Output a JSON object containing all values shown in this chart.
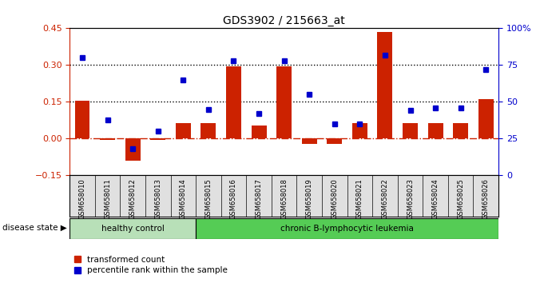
{
  "title": "GDS3902 / 215663_at",
  "samples": [
    "GSM658010",
    "GSM658011",
    "GSM658012",
    "GSM658013",
    "GSM658014",
    "GSM658015",
    "GSM658016",
    "GSM658017",
    "GSM658018",
    "GSM658019",
    "GSM658020",
    "GSM658021",
    "GSM658022",
    "GSM658023",
    "GSM658024",
    "GSM658025",
    "GSM658026"
  ],
  "bar_values": [
    0.155,
    -0.005,
    -0.09,
    -0.005,
    0.065,
    0.065,
    0.295,
    0.055,
    0.295,
    -0.02,
    -0.02,
    0.065,
    0.435,
    0.065,
    0.065,
    0.065,
    0.16
  ],
  "percentile_values": [
    80,
    38,
    18,
    30,
    65,
    45,
    78,
    42,
    78,
    55,
    35,
    35,
    82,
    44,
    46,
    46,
    72
  ],
  "group_boundary": 5,
  "group1_label": "healthy control",
  "group2_label": "chronic B-lymphocytic leukemia",
  "group1_color": "#b8e0b8",
  "group2_color": "#55cc55",
  "bar_color": "#cc2200",
  "dot_color": "#0000cc",
  "ylim_left": [
    -0.15,
    0.45
  ],
  "ylim_right": [
    0,
    100
  ],
  "yticks_left": [
    -0.15,
    0.0,
    0.15,
    0.3,
    0.45
  ],
  "yticks_right": [
    0,
    25,
    50,
    75,
    100
  ],
  "ytick_labels_right": [
    "0",
    "25",
    "50",
    "75",
    "100%"
  ],
  "hlines": [
    0.15,
    0.3
  ],
  "zero_line_color": "#cc2200",
  "background_color": "#ffffff",
  "legend_bar_label": "transformed count",
  "legend_dot_label": "percentile rank within the sample",
  "disease_state_label": "disease state"
}
